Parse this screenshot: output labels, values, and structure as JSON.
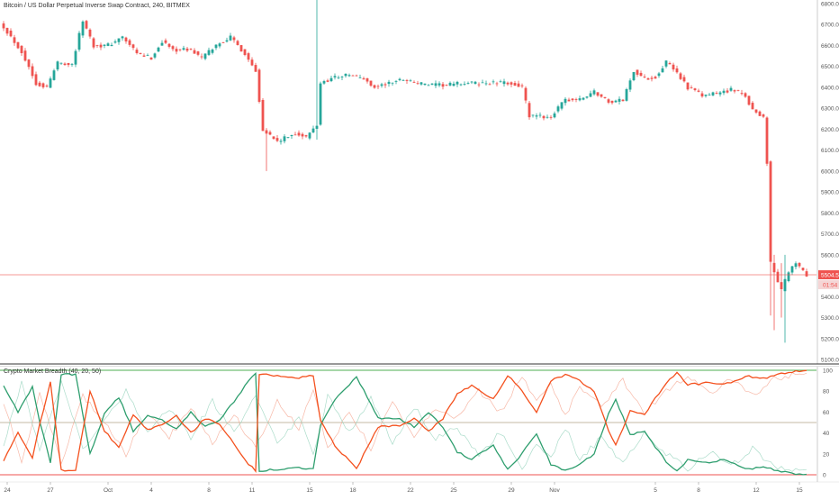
{
  "header": {
    "title": "Bitcoin / US Dollar Perpetual Inverse Swap Contract, 240, BITMEX"
  },
  "indicator": {
    "title": "Crypto Market Breadth (40, 20, 50)"
  },
  "colors": {
    "up": "#26a69a",
    "down": "#ef5350",
    "axis_text": "#555555",
    "separator": "#333333",
    "level_green": "#4caf50",
    "level_red": "#ef5350",
    "level_mid": "#9e8a6a",
    "green_line": "#2e9e6e",
    "orange_line": "#f4511e"
  },
  "chart_data": [
    {
      "type": "candlestick",
      "title": "Bitcoin / US Dollar Perpetual Inverse Swap Contract, 240, BITMEX",
      "ylim": [
        5100,
        6800
      ],
      "y_ticks": [
        5100,
        5200,
        5300,
        5400,
        5500,
        5600,
        5700,
        5800,
        5900,
        6000,
        6100,
        6200,
        6300,
        6400,
        6500,
        6600,
        6700,
        6800
      ],
      "last_price_label": "5504.5",
      "countdown_label": "01:54",
      "close_anchors": [
        [
          0,
          6690
        ],
        [
          5,
          6570
        ],
        [
          9,
          6420
        ],
        [
          12,
          6400
        ],
        [
          15,
          6520
        ],
        [
          19,
          6510
        ],
        [
          22,
          6720
        ],
        [
          25,
          6600
        ],
        [
          29,
          6600
        ],
        [
          33,
          6640
        ],
        [
          37,
          6560
        ],
        [
          41,
          6540
        ],
        [
          44,
          6620
        ],
        [
          47,
          6580
        ],
        [
          52,
          6580
        ],
        [
          55,
          6540
        ],
        [
          59,
          6600
        ],
        [
          63,
          6640
        ],
        [
          67,
          6560
        ],
        [
          70,
          6480
        ],
        [
          72,
          6200
        ],
        [
          76,
          6140
        ],
        [
          81,
          6180
        ],
        [
          84,
          6160
        ],
        [
          87,
          6220
        ],
        [
          88,
          6420
        ],
        [
          92,
          6450
        ],
        [
          96,
          6460
        ],
        [
          100,
          6440
        ],
        [
          103,
          6400
        ],
        [
          107,
          6420
        ],
        [
          111,
          6440
        ],
        [
          115,
          6420
        ],
        [
          119,
          6410
        ],
        [
          123,
          6410
        ],
        [
          127,
          6420
        ],
        [
          131,
          6420
        ],
        [
          141,
          6420
        ],
        [
          144,
          6400
        ],
        [
          146,
          6260
        ],
        [
          150,
          6260
        ],
        [
          152,
          6260
        ],
        [
          156,
          6340
        ],
        [
          160,
          6340
        ],
        [
          164,
          6380
        ],
        [
          168,
          6330
        ],
        [
          172,
          6340
        ],
        [
          175,
          6480
        ],
        [
          178,
          6440
        ],
        [
          181,
          6450
        ],
        [
          184,
          6520
        ],
        [
          187,
          6470
        ],
        [
          190,
          6400
        ],
        [
          194,
          6360
        ],
        [
          198,
          6370
        ],
        [
          202,
          6390
        ],
        [
          206,
          6360
        ],
        [
          208,
          6290
        ],
        [
          211,
          6260
        ],
        [
          212,
          6040
        ],
        [
          213,
          5560
        ],
        [
          216,
          5430
        ],
        [
          218,
          5520
        ],
        [
          220,
          5560
        ],
        [
          222,
          5520
        ],
        [
          223,
          5504.5
        ]
      ],
      "wick_spikes": [
        {
          "bar": 73,
          "high": 6000,
          "low": 6000
        },
        {
          "bar": 87,
          "high": 6820,
          "low": 6150
        },
        {
          "bar": 213,
          "high": 5560,
          "low": 5310
        },
        {
          "bar": 214,
          "high": 5600,
          "low": 5240
        },
        {
          "bar": 216,
          "high": 5560,
          "low": 5300
        },
        {
          "bar": 217,
          "high": 5600,
          "low": 5180
        }
      ]
    },
    {
      "type": "line",
      "title": "Crypto Market Breadth (40, 20, 50)",
      "ylim": [
        0,
        100
      ],
      "y_ticks": [
        0,
        20,
        40,
        60,
        80,
        100
      ],
      "levels": [
        0,
        50,
        100
      ],
      "series": [
        {
          "role": "primary-green",
          "anchors": [
            [
              0,
              86
            ],
            [
              4,
              60
            ],
            [
              8,
              84
            ],
            [
              10,
              52
            ],
            [
              13,
              12
            ],
            [
              16,
              96
            ],
            [
              20,
              96
            ],
            [
              24,
              20
            ],
            [
              28,
              58
            ],
            [
              32,
              74
            ],
            [
              36,
              42
            ],
            [
              40,
              57
            ],
            [
              44,
              52
            ],
            [
              48,
              44
            ],
            [
              52,
              60
            ],
            [
              56,
              46
            ],
            [
              60,
              52
            ],
            [
              64,
              70
            ],
            [
              68,
              90
            ],
            [
              70,
              96
            ],
            [
              71,
              4
            ],
            [
              76,
              5
            ],
            [
              82,
              7
            ],
            [
              86,
              5
            ],
            [
              88,
              48
            ],
            [
              92,
              72
            ],
            [
              98,
              94
            ],
            [
              104,
              54
            ],
            [
              110,
              53
            ],
            [
              114,
              46
            ],
            [
              118,
              59
            ],
            [
              122,
              46
            ],
            [
              126,
              22
            ],
            [
              130,
              15
            ],
            [
              136,
              28
            ],
            [
              140,
              5
            ],
            [
              144,
              20
            ],
            [
              148,
              40
            ],
            [
              152,
              10
            ],
            [
              156,
              4
            ],
            [
              160,
              10
            ],
            [
              164,
              20
            ],
            [
              168,
              58
            ],
            [
              170,
              72
            ],
            [
              174,
              38
            ],
            [
              178,
              42
            ],
            [
              184,
              12
            ],
            [
              187,
              3
            ],
            [
              190,
              14
            ],
            [
              196,
              12
            ],
            [
              200,
              14
            ],
            [
              206,
              6
            ],
            [
              212,
              7
            ],
            [
              216,
              3
            ],
            [
              220,
              1
            ],
            [
              223,
              1
            ]
          ]
        },
        {
          "role": "primary-orange",
          "anchors": [
            [
              0,
              14
            ],
            [
              4,
              40
            ],
            [
              8,
              16
            ],
            [
              10,
              48
            ],
            [
              13,
              88
            ],
            [
              16,
              4
            ],
            [
              20,
              4
            ],
            [
              24,
              80
            ],
            [
              28,
              42
            ],
            [
              32,
              26
            ],
            [
              36,
              58
            ],
            [
              40,
              43
            ],
            [
              44,
              48
            ],
            [
              48,
              56
            ],
            [
              52,
              40
            ],
            [
              56,
              54
            ],
            [
              60,
              48
            ],
            [
              64,
              30
            ],
            [
              68,
              10
            ],
            [
              70,
              4
            ],
            [
              71,
              96
            ],
            [
              76,
              95
            ],
            [
              82,
              93
            ],
            [
              86,
              95
            ],
            [
              88,
              52
            ],
            [
              92,
              28
            ],
            [
              98,
              6
            ],
            [
              104,
              46
            ],
            [
              110,
              47
            ],
            [
              114,
              54
            ],
            [
              118,
              41
            ],
            [
              122,
              54
            ],
            [
              126,
              78
            ],
            [
              130,
              85
            ],
            [
              136,
              72
            ],
            [
              140,
              95
            ],
            [
              144,
              80
            ],
            [
              148,
              60
            ],
            [
              152,
              90
            ],
            [
              156,
              96
            ],
            [
              160,
              90
            ],
            [
              164,
              80
            ],
            [
              168,
              42
            ],
            [
              170,
              28
            ],
            [
              174,
              62
            ],
            [
              178,
              58
            ],
            [
              184,
              88
            ],
            [
              187,
              97
            ],
            [
              190,
              86
            ],
            [
              196,
              88
            ],
            [
              200,
              86
            ],
            [
              206,
              94
            ],
            [
              212,
              93
            ],
            [
              216,
              97
            ],
            [
              220,
              99
            ],
            [
              223,
              99
            ]
          ]
        },
        {
          "role": "faint-orange",
          "anchors": [
            [
              0,
              70
            ],
            [
              5,
              10
            ],
            [
              10,
              80
            ],
            [
              16,
              10
            ],
            [
              22,
              75
            ],
            [
              28,
              50
            ],
            [
              34,
              20
            ],
            [
              40,
              60
            ],
            [
              46,
              36
            ],
            [
              52,
              64
            ],
            [
              58,
              30
            ],
            [
              64,
              58
            ],
            [
              70,
              25
            ],
            [
              76,
              70
            ],
            [
              82,
              45
            ],
            [
              86,
              80
            ],
            [
              90,
              25
            ],
            [
              96,
              60
            ],
            [
              102,
              25
            ],
            [
              108,
              70
            ],
            [
              114,
              35
            ],
            [
              120,
              65
            ],
            [
              126,
              55
            ],
            [
              132,
              80
            ],
            [
              138,
              60
            ],
            [
              144,
              95
            ],
            [
              148,
              70
            ],
            [
              152,
              85
            ],
            [
              156,
              55
            ],
            [
              160,
              85
            ],
            [
              166,
              65
            ],
            [
              172,
              90
            ],
            [
              178,
              60
            ],
            [
              184,
              80
            ],
            [
              190,
              94
            ],
            [
              196,
              78
            ],
            [
              202,
              92
            ],
            [
              208,
              75
            ],
            [
              214,
              92
            ],
            [
              220,
              96
            ],
            [
              223,
              97
            ]
          ]
        },
        {
          "role": "faint-green",
          "anchors": [
            [
              0,
              30
            ],
            [
              5,
              88
            ],
            [
              10,
              22
            ],
            [
              16,
              88
            ],
            [
              22,
              25
            ],
            [
              28,
              50
            ],
            [
              34,
              80
            ],
            [
              40,
              40
            ],
            [
              46,
              64
            ],
            [
              52,
              36
            ],
            [
              58,
              70
            ],
            [
              64,
              42
            ],
            [
              70,
              75
            ],
            [
              76,
              30
            ],
            [
              82,
              55
            ],
            [
              86,
              20
            ],
            [
              90,
              75
            ],
            [
              96,
              40
            ],
            [
              102,
              75
            ],
            [
              108,
              30
            ],
            [
              114,
              65
            ],
            [
              120,
              35
            ],
            [
              126,
              45
            ],
            [
              132,
              20
            ],
            [
              138,
              40
            ],
            [
              144,
              5
            ],
            [
              148,
              30
            ],
            [
              152,
              15
            ],
            [
              156,
              45
            ],
            [
              160,
              15
            ],
            [
              166,
              35
            ],
            [
              172,
              10
            ],
            [
              178,
              40
            ],
            [
              184,
              20
            ],
            [
              190,
              6
            ],
            [
              196,
              22
            ],
            [
              202,
              8
            ],
            [
              208,
              25
            ],
            [
              214,
              8
            ],
            [
              220,
              4
            ],
            [
              223,
              3
            ]
          ]
        }
      ]
    }
  ],
  "x_axis": {
    "labels": [
      {
        "text": "24",
        "bar": 1
      },
      {
        "text": "27",
        "bar": 13
      },
      {
        "text": "Oct",
        "bar": 29
      },
      {
        "text": "4",
        "bar": 41
      },
      {
        "text": "8",
        "bar": 57
      },
      {
        "text": "11",
        "bar": 69
      },
      {
        "text": "15",
        "bar": 85
      },
      {
        "text": "18",
        "bar": 97
      },
      {
        "text": "22",
        "bar": 113
      },
      {
        "text": "25",
        "bar": 125
      },
      {
        "text": "29",
        "bar": 141
      },
      {
        "text": "Nov",
        "bar": 153
      },
      {
        "text": "5",
        "bar": 181
      },
      {
        "text": "8",
        "bar": 193
      },
      {
        "text": "12",
        "bar": 209
      },
      {
        "text": "15",
        "bar": 221
      }
    ]
  }
}
